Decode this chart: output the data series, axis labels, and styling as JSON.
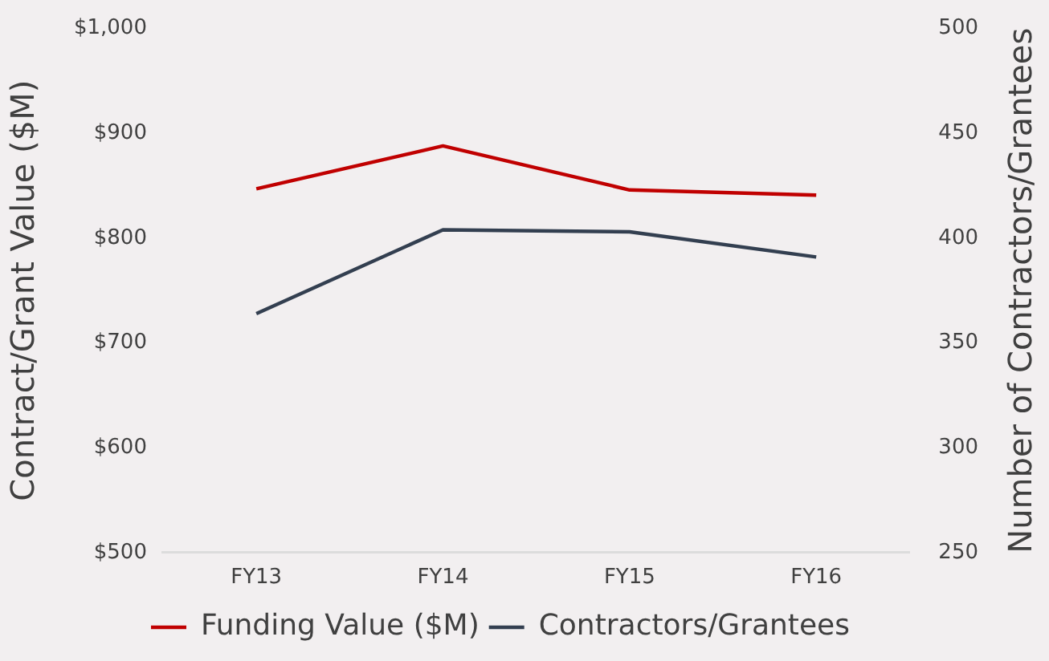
{
  "chart_data": {
    "type": "line",
    "categories": [
      "FY13",
      "FY14",
      "FY15",
      "FY16"
    ],
    "series": [
      {
        "name": "Funding Value ($M)",
        "color": "#c00000",
        "values": [
          847,
          888,
          846,
          841
        ]
      },
      {
        "name": "Contractors/Grantees",
        "color": "#333f50",
        "values": [
          364,
          404,
          403,
          391
        ],
        "axis": "y2"
      }
    ],
    "ylabel": "Contract/Grant Value ($M)",
    "y2label": "Number of Contractors/Grantees",
    "ylim": [
      500,
      1000
    ],
    "yticks": [
      {
        "value": 500,
        "label": "$500"
      },
      {
        "value": 600,
        "label": "$600"
      },
      {
        "value": 700,
        "label": "$700"
      },
      {
        "value": 800,
        "label": "$800"
      },
      {
        "value": 900,
        "label": "$900"
      },
      {
        "value": 1000,
        "label": "$1,000"
      }
    ],
    "y2lim": [
      250,
      500
    ],
    "y2ticks": [
      250,
      300,
      350,
      400,
      450,
      500
    ],
    "legend": "bottom"
  }
}
